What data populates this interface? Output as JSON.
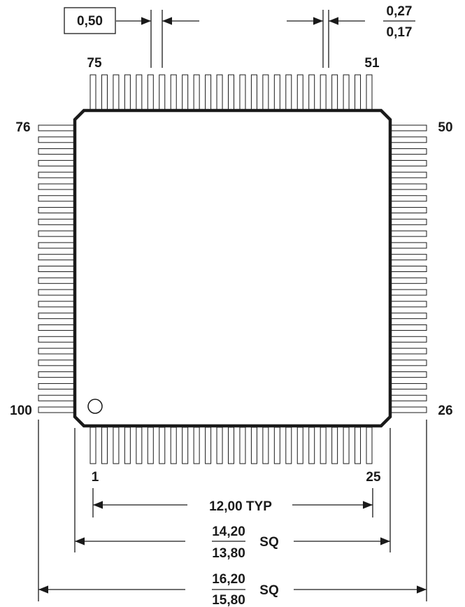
{
  "pitch": {
    "value": "0,50"
  },
  "lead_width": {
    "max": "0,27",
    "min": "0,17"
  },
  "pin_labels": {
    "bottom_left": "1",
    "bottom_right": "25",
    "right_bottom": "26",
    "right_top": "50",
    "top_right": "51",
    "top_left": "75",
    "left_top": "76",
    "left_bottom": "100"
  },
  "pins_per_side": 25,
  "dimension_typ": "12,00 TYP",
  "dimension_body": {
    "max": "14,20",
    "min": "13,80",
    "suffix": "SQ"
  },
  "dimension_overall": {
    "max": "16,20",
    "min": "15,80",
    "suffix": "SQ"
  },
  "colors": {
    "line": "#1a1a1a",
    "background": "#ffffff"
  }
}
